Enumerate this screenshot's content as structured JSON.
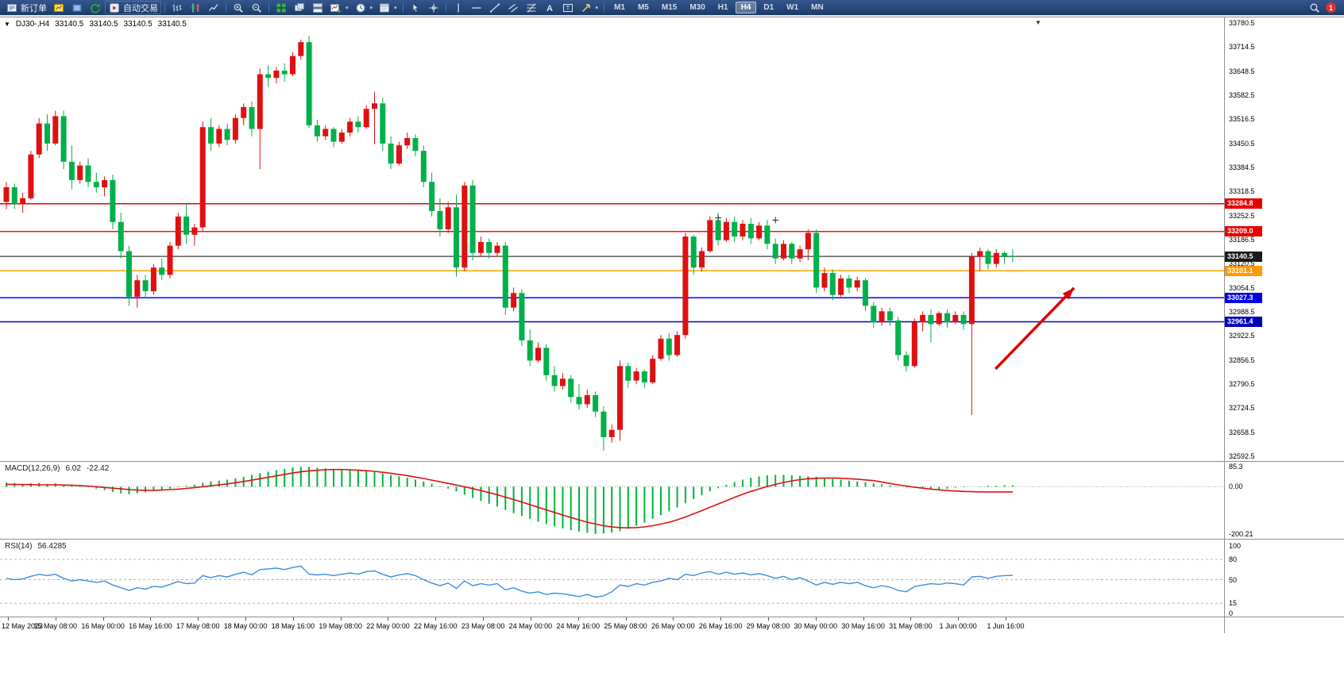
{
  "window": {
    "app_width": 1692,
    "app_height": 862
  },
  "toolbar": {
    "new_order_label": "新订单",
    "autotrading_label": "自动交易",
    "timeframes": [
      "M1",
      "M5",
      "M15",
      "M30",
      "H1",
      "H4",
      "D1",
      "W1",
      "MN"
    ],
    "active_timeframe": "H4",
    "notification_count": "1"
  },
  "chart": {
    "symbol_period": "DJ30-,H4",
    "open": "33140.5",
    "high": "33140.5",
    "low": "33140.5",
    "close": "33140.5"
  },
  "price_axis": {
    "labels": [
      "33780.5",
      "33714.5",
      "33648.5",
      "33582.5",
      "33516.5",
      "33450.5",
      "33384.5",
      "33318.5",
      "33252.5",
      "33186.5",
      "33120.5",
      "33054.5",
      "32988.5",
      "32922.5",
      "32856.5",
      "32790.5",
      "32724.5",
      "32658.5",
      "32592.5"
    ]
  },
  "levels": [
    {
      "value": "33284.8",
      "price": 33284.8,
      "color": "#e80000",
      "badge": "#e80000",
      "name": "resistance-line-1"
    },
    {
      "value": "33209.0",
      "price": 33209.0,
      "color": "#ff1010",
      "badge": "#e80000",
      "name": "resistance-line-2"
    },
    {
      "value": "33140.5",
      "price": 33140.5,
      "color": "#3c3c3c",
      "badge": "#1a1a1a",
      "name": "current-price-line"
    },
    {
      "value": "33101.1",
      "price": 33101.1,
      "color": "#ffa200",
      "badge": "#ff9900",
      "name": "pivot-line"
    },
    {
      "value": "33027.3",
      "price": 33027.3,
      "color": "#0000ff",
      "badge": "#0000e6",
      "name": "support-line-1"
    },
    {
      "value": "32961.4",
      "price": 32961.4,
      "color": "#0000cc",
      "badge": "#0000bb",
      "name": "support-line-2"
    }
  ],
  "time_axis": {
    "labels": [
      "12 May 2023",
      "15 May 08:00",
      "16 May 00:00",
      "16 May 16:00",
      "17 May 08:00",
      "18 May 00:00",
      "18 May 16:00",
      "19 May 08:00",
      "22 May 00:00",
      "22 May 16:00",
      "23 May 08:00",
      "24 May 00:00",
      "24 May 16:00",
      "25 May 08:00",
      "26 May 00:00",
      "26 May 16:00",
      "29 May 08:00",
      "30 May 00:00",
      "30 May 16:00",
      "31 May 08:00",
      "1 Jun 00:00",
      "1 Jun 16:00"
    ]
  },
  "macd_panel": {
    "name": "MACD(12,26,9)",
    "value_main": "6.02",
    "value_signal": "-22.42",
    "scale_max": "85.3",
    "scale_zero": "0.00",
    "scale_min": "-200.21",
    "max": 85.3,
    "min": -200.21
  },
  "rsi_panel": {
    "name": "RSI(14)",
    "value": "56.4285",
    "scale": [
      {
        "v": 100,
        "label": "100"
      },
      {
        "v": 80,
        "label": "80"
      },
      {
        "v": 50,
        "label": "50"
      },
      {
        "v": 15,
        "label": "15"
      },
      {
        "v": 0,
        "label": "0"
      }
    ],
    "dashed_levels": [
      80,
      50,
      15
    ],
    "max": 100,
    "min": 0
  },
  "chart_data": {
    "type": "candlestick",
    "symbol": "DJ30-",
    "timeframe": "H4",
    "color_note": "red = bullish, green = bearish (CN convention)",
    "price_axis_range": [
      32592.5,
      33780.5
    ],
    "horizontal_levels": [
      33284.8,
      33209.0,
      33140.5,
      33101.1,
      33027.3,
      32961.4
    ],
    "candles_ohlc": [
      [
        33290,
        33345,
        33270,
        33330
      ],
      [
        33330,
        33340,
        33270,
        33285
      ],
      [
        33285,
        33315,
        33260,
        33300
      ],
      [
        33300,
        33430,
        33295,
        33420
      ],
      [
        33420,
        33520,
        33410,
        33505
      ],
      [
        33505,
        33530,
        33430,
        33450
      ],
      [
        33450,
        33540,
        33445,
        33525
      ],
      [
        33525,
        33540,
        33380,
        33400
      ],
      [
        33400,
        33445,
        33325,
        33350
      ],
      [
        33350,
        33400,
        33340,
        33390
      ],
      [
        33390,
        33410,
        33330,
        33345
      ],
      [
        33345,
        33370,
        33315,
        33330
      ],
      [
        33330,
        33360,
        33305,
        33350
      ],
      [
        33350,
        33365,
        33215,
        33235
      ],
      [
        33235,
        33260,
        33135,
        33155
      ],
      [
        33155,
        33170,
        33005,
        33030
      ],
      [
        33030,
        33090,
        33000,
        33075
      ],
      [
        33075,
        33090,
        33025,
        33045
      ],
      [
        33045,
        33120,
        33035,
        33110
      ],
      [
        33110,
        33135,
        33075,
        33090
      ],
      [
        33090,
        33180,
        33080,
        33170
      ],
      [
        33170,
        33260,
        33160,
        33250
      ],
      [
        33250,
        33285,
        33175,
        33200
      ],
      [
        33200,
        33230,
        33170,
        33220
      ],
      [
        33220,
        33510,
        33210,
        33495
      ],
      [
        33495,
        33520,
        33430,
        33450
      ],
      [
        33450,
        33500,
        33440,
        33490
      ],
      [
        33490,
        33505,
        33445,
        33460
      ],
      [
        33460,
        33530,
        33450,
        33520
      ],
      [
        33520,
        33560,
        33500,
        33550
      ],
      [
        33550,
        33565,
        33470,
        33490
      ],
      [
        33490,
        33655,
        33380,
        33640
      ],
      [
        33640,
        33665,
        33605,
        33630
      ],
      [
        33630,
        33660,
        33615,
        33650
      ],
      [
        33650,
        33670,
        33620,
        33640
      ],
      [
        33640,
        33700,
        33635,
        33690
      ],
      [
        33690,
        33735,
        33680,
        33728
      ],
      [
        33728,
        33746,
        33492,
        33500
      ],
      [
        33500,
        33515,
        33455,
        33470
      ],
      [
        33470,
        33500,
        33460,
        33490
      ],
      [
        33490,
        33495,
        33440,
        33455
      ],
      [
        33455,
        33490,
        33450,
        33480
      ],
      [
        33480,
        33520,
        33470,
        33510
      ],
      [
        33510,
        33525,
        33480,
        33495
      ],
      [
        33495,
        33555,
        33490,
        33545
      ],
      [
        33545,
        33592,
        33448,
        33560
      ],
      [
        33560,
        33575,
        33430,
        33450
      ],
      [
        33450,
        33470,
        33380,
        33395
      ],
      [
        33395,
        33455,
        33390,
        33445
      ],
      [
        33445,
        33480,
        33435,
        33465
      ],
      [
        33465,
        33475,
        33415,
        33430
      ],
      [
        33430,
        33445,
        33330,
        33345
      ],
      [
        33345,
        33370,
        33250,
        33265
      ],
      [
        33265,
        33300,
        33195,
        33215
      ],
      [
        33215,
        33290,
        33205,
        33275
      ],
      [
        33275,
        33310,
        33085,
        33110
      ],
      [
        33110,
        33345,
        33100,
        33335
      ],
      [
        33335,
        33350,
        33130,
        33150
      ],
      [
        33150,
        33195,
        33140,
        33180
      ],
      [
        33180,
        33190,
        33135,
        33150
      ],
      [
        33150,
        33180,
        33140,
        33170
      ],
      [
        33170,
        33180,
        32980,
        33000
      ],
      [
        33000,
        33055,
        32990,
        33040
      ],
      [
        33040,
        33050,
        32895,
        32910
      ],
      [
        32910,
        32940,
        32840,
        32855
      ],
      [
        32855,
        32905,
        32850,
        32890
      ],
      [
        32890,
        32900,
        32800,
        32815
      ],
      [
        32815,
        32840,
        32770,
        32785
      ],
      [
        32785,
        32820,
        32775,
        32805
      ],
      [
        32805,
        32815,
        32740,
        32755
      ],
      [
        32755,
        32790,
        32720,
        32735
      ],
      [
        32735,
        32775,
        32725,
        32760
      ],
      [
        32760,
        32770,
        32700,
        32715
      ],
      [
        32715,
        32730,
        32608,
        32645
      ],
      [
        32645,
        32680,
        32630,
        32665
      ],
      [
        32665,
        32855,
        32635,
        32840
      ],
      [
        32840,
        32850,
        32780,
        32800
      ],
      [
        32800,
        32835,
        32790,
        32825
      ],
      [
        32825,
        32830,
        32780,
        32795
      ],
      [
        32795,
        32870,
        32790,
        32860
      ],
      [
        32860,
        32925,
        32855,
        32915
      ],
      [
        32915,
        32930,
        32855,
        32870
      ],
      [
        32870,
        32935,
        32865,
        32925
      ],
      [
        32925,
        33205,
        32915,
        33195
      ],
      [
        33195,
        33200,
        33090,
        33110
      ],
      [
        33110,
        33165,
        33100,
        33155
      ],
      [
        33155,
        33250,
        33150,
        33240
      ],
      [
        33240,
        33260,
        33170,
        33185
      ],
      [
        33185,
        33245,
        33180,
        33235
      ],
      [
        33235,
        33250,
        33180,
        33195
      ],
      [
        33195,
        33240,
        33185,
        33230
      ],
      [
        33230,
        33245,
        33175,
        33190
      ],
      [
        33190,
        33235,
        33185,
        33225
      ],
      [
        33225,
        33240,
        33160,
        33175
      ],
      [
        33175,
        33190,
        33120,
        33135
      ],
      [
        33135,
        33185,
        33130,
        33175
      ],
      [
        33175,
        33180,
        33120,
        33135
      ],
      [
        33135,
        33170,
        33125,
        33160
      ],
      [
        33160,
        33215,
        33130,
        33205
      ],
      [
        33205,
        33215,
        33040,
        33055
      ],
      [
        33055,
        33110,
        33045,
        33095
      ],
      [
        33095,
        33105,
        33020,
        33035
      ],
      [
        33035,
        33090,
        33030,
        33080
      ],
      [
        33080,
        33090,
        33040,
        33055
      ],
      [
        33055,
        33085,
        33045,
        33075
      ],
      [
        33075,
        33080,
        32990,
        33005
      ],
      [
        33005,
        33015,
        32945,
        32960
      ],
      [
        32960,
        33000,
        32950,
        32990
      ],
      [
        32990,
        33000,
        32950,
        32965
      ],
      [
        32965,
        32975,
        32855,
        32870
      ],
      [
        32870,
        32880,
        32825,
        32840
      ],
      [
        32840,
        32970,
        32835,
        32960
      ],
      [
        32960,
        32990,
        32935,
        32980
      ],
      [
        32980,
        32995,
        32905,
        32955
      ],
      [
        32955,
        32990,
        32950,
        32985
      ],
      [
        32985,
        32995,
        32945,
        32960
      ],
      [
        32960,
        32990,
        32955,
        32980
      ],
      [
        32980,
        32990,
        32940,
        32955
      ],
      [
        32955,
        33150,
        32705,
        33140
      ],
      [
        33140,
        33165,
        33100,
        33155
      ],
      [
        33155,
        33160,
        33105,
        33120
      ],
      [
        33120,
        33160,
        33110,
        33150
      ],
      [
        33150,
        33155,
        33120,
        33141
      ],
      [
        33141,
        33160,
        33125,
        33140
      ]
    ],
    "macd_histogram": [
      18,
      15,
      12,
      14,
      16,
      12,
      14,
      8,
      4,
      6,
      -2,
      -8,
      -14,
      -22,
      -28,
      -32,
      -28,
      -24,
      -18,
      -14,
      -8,
      -2,
      4,
      8,
      16,
      22,
      26,
      30,
      36,
      42,
      50,
      58,
      64,
      70,
      76,
      82,
      85,
      84,
      80,
      78,
      76,
      74,
      72,
      70,
      66,
      62,
      56,
      50,
      44,
      38,
      30,
      22,
      12,
      2,
      -8,
      -20,
      -34,
      -48,
      -60,
      -72,
      -84,
      -98,
      -112,
      -124,
      -136,
      -148,
      -158,
      -168,
      -176,
      -184,
      -190,
      -196,
      -200,
      -198,
      -194,
      -188,
      -178,
      -166,
      -152,
      -136,
      -120,
      -104,
      -88,
      -70,
      -52,
      -36,
      -20,
      -6,
      8,
      20,
      30,
      38,
      44,
      48,
      50,
      50,
      48,
      46,
      44,
      42,
      38,
      34,
      30,
      26,
      22,
      18,
      14,
      10,
      6,
      2,
      -2,
      -6,
      -8,
      -10,
      -10,
      -8,
      -4,
      -2,
      0,
      2,
      4,
      5,
      6,
      6
    ],
    "macd_signal": [
      10,
      10,
      9,
      9,
      8,
      8,
      8,
      7,
      6,
      5,
      3,
      0,
      -3,
      -6,
      -9,
      -12,
      -14,
      -15,
      -15,
      -14,
      -12,
      -10,
      -7,
      -4,
      0,
      4,
      8,
      12,
      17,
      22,
      28,
      34,
      40,
      46,
      52,
      58,
      63,
      67,
      70,
      72,
      73,
      73,
      72,
      70,
      68,
      65,
      61,
      57,
      52,
      47,
      41,
      35,
      28,
      21,
      14,
      7,
      0,
      -8,
      -16,
      -25,
      -34,
      -44,
      -54,
      -65,
      -76,
      -87,
      -98,
      -109,
      -120,
      -130,
      -140,
      -150,
      -158,
      -165,
      -170,
      -173,
      -174,
      -173,
      -170,
      -165,
      -158,
      -150,
      -140,
      -128,
      -115,
      -101,
      -87,
      -73,
      -59,
      -45,
      -32,
      -20,
      -9,
      1,
      10,
      18,
      25,
      30,
      34,
      36,
      37,
      37,
      36,
      34,
      32,
      29,
      26,
      20,
      14,
      8,
      3,
      -2,
      -6,
      -10,
      -13,
      -16,
      -18,
      -20,
      -21,
      -22,
      -22,
      -22,
      -22,
      -22
    ],
    "rsi_values": [
      52,
      50,
      51,
      55,
      58,
      56,
      58,
      52,
      48,
      50,
      48,
      46,
      48,
      42,
      38,
      34,
      38,
      36,
      40,
      39,
      43,
      47,
      44,
      45,
      56,
      53,
      56,
      54,
      58,
      61,
      57,
      65,
      66,
      67,
      65,
      68,
      70,
      58,
      57,
      58,
      56,
      58,
      60,
      58,
      62,
      63,
      58,
      54,
      57,
      59,
      56,
      50,
      45,
      41,
      45,
      37,
      48,
      41,
      44,
      42,
      44,
      35,
      38,
      33,
      30,
      32,
      28,
      30,
      29,
      27,
      25,
      28,
      24,
      26,
      32,
      42,
      40,
      44,
      42,
      46,
      48,
      52,
      50,
      58,
      56,
      60,
      62,
      58,
      61,
      58,
      60,
      57,
      59,
      56,
      52,
      55,
      50,
      53,
      48,
      42,
      46,
      43,
      46,
      44,
      46,
      41,
      38,
      41,
      39,
      34,
      32,
      40,
      42,
      44,
      43,
      45,
      44,
      42,
      54,
      55,
      52,
      55,
      56,
      56.4
    ]
  },
  "annotations": {
    "arrow": {
      "from": {
        "bar": 120.9,
        "price": 32832
      },
      "to": {
        "bar": 130.5,
        "price": 33054
      },
      "color": "#dd0000"
    },
    "plus_markers": [
      {
        "bar": 87,
        "price": 33246
      },
      {
        "bar": 94,
        "price": 33240
      }
    ],
    "chart_shift_marker": "▼",
    "one_click_marker": "▼"
  },
  "colors": {
    "bull": "#e01010",
    "bear": "#00b04a",
    "macd_histogram": "#00b43c",
    "macd_signal": "#e01010",
    "rsi_line": "#3e8ede",
    "axis_text": "#000000"
  }
}
